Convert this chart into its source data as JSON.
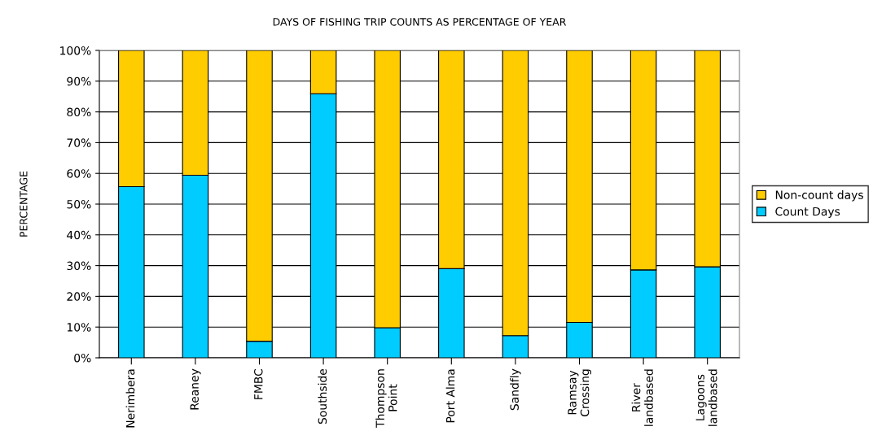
{
  "chart_data": {
    "type": "bar",
    "title": "DAYS OF FISHING TRIP COUNTS AS PERCENTAGE OF YEAR",
    "ylabel": "PERCENTAGE",
    "categories": [
      "Nerimbera",
      "Reaney",
      "FMBC",
      "Southside",
      "Thompson\nPoint",
      "Port Alma",
      "Sandfly",
      "Ramsay\nCrossing",
      "River\nlandbased",
      "Lagoons\nlandbased"
    ],
    "stacked": true,
    "series": [
      {
        "name": "Count Days",
        "color": "#00ccff",
        "values": [
          55.7,
          59.4,
          5.4,
          85.9,
          9.8,
          29.0,
          7.2,
          11.5,
          28.6,
          29.6
        ]
      },
      {
        "name": "Non-count days",
        "color": "#ffcc00",
        "values": [
          44.3,
          40.6,
          94.6,
          14.1,
          90.2,
          71.0,
          92.8,
          88.5,
          71.4,
          70.4
        ]
      }
    ],
    "ylim": [
      0,
      100
    ],
    "yticks": [
      {
        "value": 0,
        "label": "0%"
      },
      {
        "value": 10,
        "label": "10%"
      },
      {
        "value": 20,
        "label": "20%"
      },
      {
        "value": 30,
        "label": "30%"
      },
      {
        "value": 40,
        "label": "40%"
      },
      {
        "value": 50,
        "label": "50%"
      },
      {
        "value": 60,
        "label": "60%"
      },
      {
        "value": 70,
        "label": "70%"
      },
      {
        "value": 80,
        "label": "80%"
      },
      {
        "value": 90,
        "label": "90%"
      },
      {
        "value": 100,
        "label": "100%"
      }
    ],
    "grid": "y",
    "legend": "right"
  }
}
